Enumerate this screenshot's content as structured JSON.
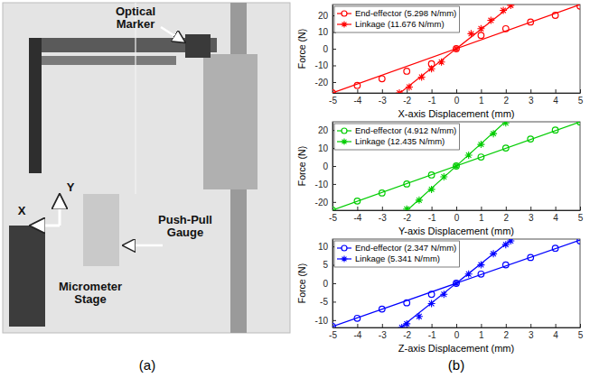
{
  "panel_labels": [
    "(a)",
    "(b)"
  ],
  "photo": {
    "labels": [
      "Optical Marker",
      "Y",
      "X",
      "Push-Pull Gauge",
      "Micrometer Stage"
    ]
  },
  "chart_data": [
    {
      "type": "line",
      "x_label": "X-axis Displacement (mm)",
      "y_label": "Force (N)",
      "xlim": [
        -5,
        5
      ],
      "xticks": [
        -5,
        -4,
        -3,
        -2,
        -1,
        0,
        1,
        2,
        3,
        4,
        5
      ],
      "ylim": [
        -26.5,
        26.5
      ],
      "yticks": [
        -20,
        -10,
        0,
        10,
        20
      ],
      "grid": false,
      "legend": "upper left",
      "series": [
        {
          "name": "End-effector (5.298 N/mm)",
          "color": "#ff0000",
          "marker": "circle",
          "line_style": "solid",
          "x": [
            -5,
            -4,
            -3,
            -2,
            -1,
            0,
            1,
            2,
            3,
            4,
            5
          ],
          "values": [
            -26.5,
            -22,
            -18,
            -13.5,
            -9,
            0,
            8,
            12,
            16,
            20,
            25.5
          ],
          "fit_x": [
            -5,
            5
          ],
          "fit_values": [
            -26.49,
            26.49
          ]
        },
        {
          "name": "Linkage (11.676 N/mm)",
          "color": "#ff0000",
          "marker": "star",
          "line_style": "solid",
          "x": [
            -2.3,
            -1.9,
            -1.4,
            -1,
            -0.6,
            0,
            0.6,
            1,
            1.4,
            1.9,
            2.2
          ],
          "values": [
            -26.5,
            -23,
            -17,
            -12,
            -8,
            0,
            9,
            12,
            17,
            23,
            26
          ],
          "fit_x": [
            -2.27,
            2.27
          ],
          "fit_values": [
            -26.5,
            26.5
          ]
        }
      ]
    },
    {
      "type": "line",
      "x_label": "Y-axis Displacement (mm)",
      "y_label": "Force (N)",
      "xlim": [
        -5,
        5
      ],
      "xticks": [
        -5,
        -4,
        -3,
        -2,
        -1,
        0,
        1,
        2,
        3,
        4,
        5
      ],
      "ylim": [
        -24.6,
        24.6
      ],
      "yticks": [
        -20,
        -10,
        0,
        10,
        20
      ],
      "grid": false,
      "legend": "upper left",
      "series": [
        {
          "name": "End-effector (4.912 N/mm)",
          "color": "#00cc00",
          "marker": "circle",
          "line_style": "solid",
          "x": [
            -5,
            -4,
            -3,
            -2,
            -1,
            0,
            1,
            2,
            3,
            4,
            5
          ],
          "values": [
            -24.5,
            -19.5,
            -15,
            -10,
            -5,
            0,
            5,
            10,
            15,
            20,
            24.5
          ],
          "fit_x": [
            -5,
            5
          ],
          "fit_values": [
            -24.56,
            24.56
          ]
        },
        {
          "name": "Linkage (12.435 N/mm)",
          "color": "#00cc00",
          "marker": "star",
          "line_style": "solid",
          "x": [
            -2,
            -1.5,
            -1,
            -0.5,
            0,
            0.5,
            1,
            1.5,
            2
          ],
          "values": [
            -24,
            -19,
            -13,
            -6,
            0,
            6,
            12,
            18,
            24
          ],
          "fit_x": [
            -1.98,
            1.98
          ],
          "fit_values": [
            -24.6,
            24.6
          ]
        }
      ]
    },
    {
      "type": "line",
      "x_label": "Z-axis Displacement (mm)",
      "y_label": "Force (N)",
      "xlim": [
        -5,
        5
      ],
      "xticks": [
        -5,
        -4,
        -3,
        -2,
        -1,
        0,
        1,
        2,
        3,
        4,
        5
      ],
      "ylim": [
        -12,
        12
      ],
      "yticks": [
        -10,
        -5,
        0,
        5,
        10
      ],
      "grid": false,
      "legend": "upper left",
      "series": [
        {
          "name": "End-effector (2.347 N/mm)",
          "color": "#0000ff",
          "marker": "circle",
          "line_style": "solid",
          "x": [
            -5,
            -4,
            -3,
            -2,
            -1,
            0,
            1,
            2,
            3,
            4,
            5
          ],
          "values": [
            -11.7,
            -9.5,
            -7,
            -5.3,
            -3,
            0,
            2.5,
            5,
            7,
            9.5,
            11.5
          ],
          "fit_x": [
            -5,
            5
          ],
          "fit_values": [
            -11.74,
            11.74
          ]
        },
        {
          "name": "Linkage (5.341 N/mm)",
          "color": "#0000ff",
          "marker": "star",
          "line_style": "solid",
          "x": [
            -2.2,
            -2,
            -1.5,
            -1,
            -0.5,
            0,
            0.5,
            1,
            1.5,
            2,
            2.2
          ],
          "values": [
            -12,
            -11,
            -9,
            -5.5,
            -3,
            0,
            2.5,
            5,
            8,
            10.5,
            11.5
          ],
          "fit_x": [
            -2.2,
            2.2
          ],
          "fit_values": [
            -11.75,
            11.75
          ]
        }
      ]
    }
  ]
}
